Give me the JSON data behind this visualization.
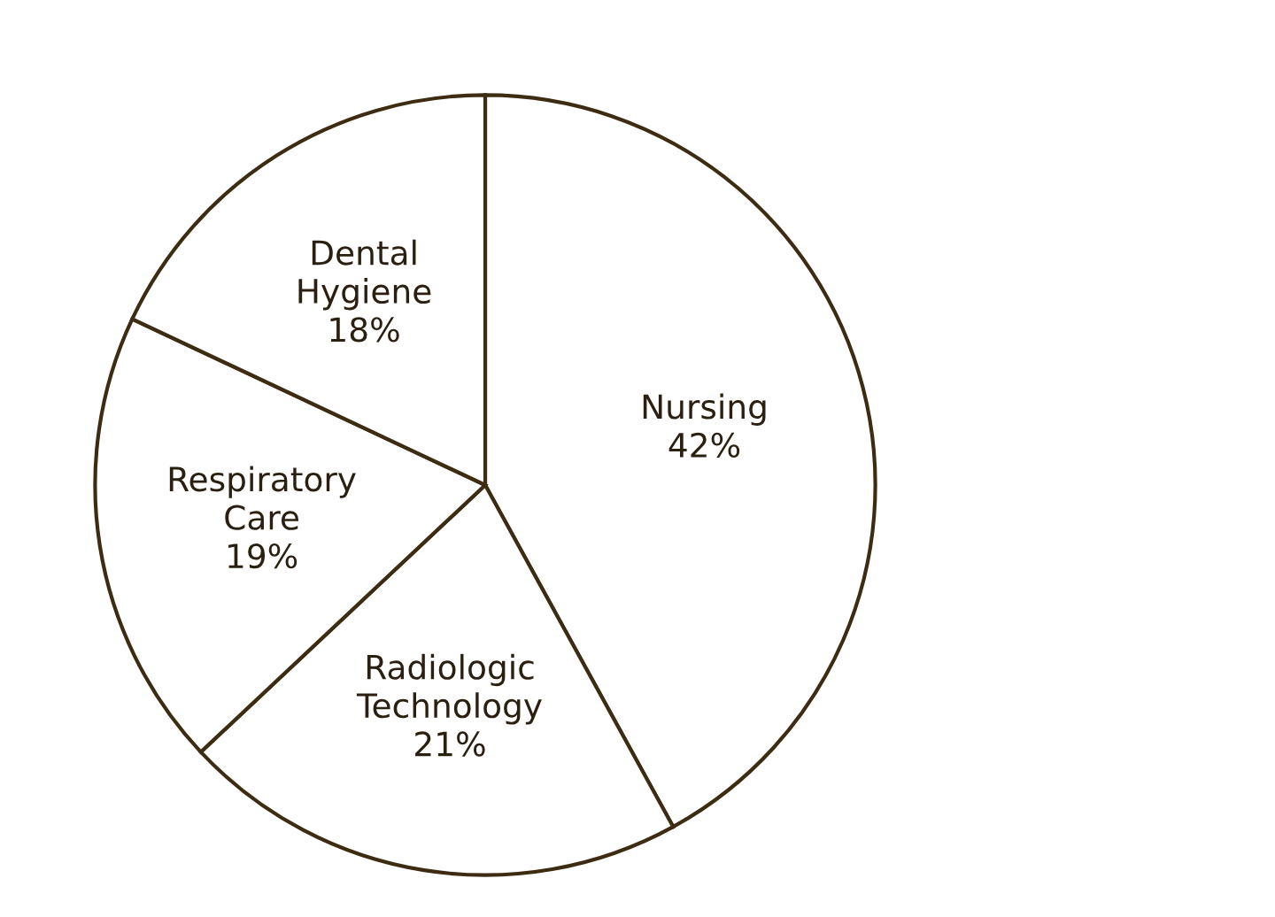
{
  "chart_data": {
    "type": "pie",
    "categories": [
      "Nursing",
      "Radiologic Technology",
      "Respiratory Care",
      "Dental Hygiene"
    ],
    "values": [
      42,
      21,
      19,
      18
    ],
    "value_labels": [
      "42%",
      "21%",
      "19%",
      "18%"
    ],
    "colors": [
      "#ffffff",
      "#ffffff",
      "#ffffff",
      "#ffffff"
    ]
  }
}
